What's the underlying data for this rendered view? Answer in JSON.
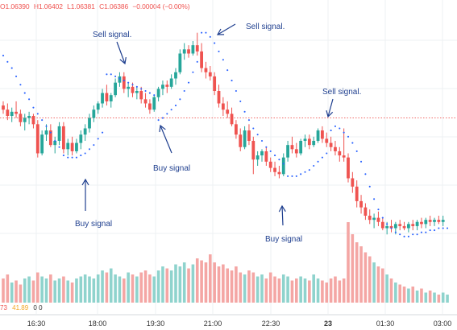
{
  "header": {
    "open": "O1.06390",
    "high": "H1.06402",
    "low": "L1.06381",
    "close": "C1.06386",
    "change": "−0.00004 (−0.00%)"
  },
  "indicator": {
    "v1": "73",
    "v2": "41.89",
    "v3": "0",
    "v4": "0"
  },
  "chart_data": {
    "type": "candlestick",
    "title": "",
    "x_tick_labels": [
      "16:30",
      "18:00",
      "19:30",
      "21:00",
      "22:30",
      "23",
      "01:30",
      "03:00"
    ],
    "candles": [
      [
        1.0717,
        1.0719,
        1.0713,
        1.0715
      ],
      [
        1.0715,
        1.0718,
        1.071,
        1.0712
      ],
      [
        1.0712,
        1.0716,
        1.0709,
        1.0714
      ],
      [
        1.0714,
        1.0719,
        1.0711,
        1.0713
      ],
      [
        1.0713,
        1.0715,
        1.0707,
        1.0709
      ],
      [
        1.0709,
        1.0713,
        1.0705,
        1.0711
      ],
      [
        1.0711,
        1.0714,
        1.0708,
        1.0712
      ],
      [
        1.0712,
        1.0713,
        1.0706,
        1.0708
      ],
      [
        1.0708,
        1.071,
        1.0692,
        1.0694
      ],
      [
        1.0694,
        1.0705,
        1.0693,
        1.0703
      ],
      [
        1.0703,
        1.0708,
        1.07,
        1.0705
      ],
      [
        1.0705,
        1.0708,
        1.0697,
        1.0698
      ],
      [
        1.0698,
        1.0702,
        1.0694,
        1.07
      ],
      [
        1.07,
        1.0709,
        1.0698,
        1.0707
      ],
      [
        1.0707,
        1.0709,
        1.0694,
        1.0696
      ],
      [
        1.0696,
        1.0701,
        1.0693,
        1.0699
      ],
      [
        1.0699,
        1.0702,
        1.0693,
        1.0695
      ],
      [
        1.0695,
        1.0701,
        1.0694,
        1.0699
      ],
      [
        1.0699,
        1.0705,
        1.0696,
        1.0703
      ],
      [
        1.0703,
        1.0708,
        1.07,
        1.0706
      ],
      [
        1.0706,
        1.0713,
        1.0704,
        1.0711
      ],
      [
        1.0711,
        1.0717,
        1.0709,
        1.0715
      ],
      [
        1.0715,
        1.0719,
        1.0713,
        1.0718
      ],
      [
        1.0718,
        1.0725,
        1.0716,
        1.0723
      ],
      [
        1.0723,
        1.0727,
        1.0717,
        1.0719
      ],
      [
        1.0719,
        1.0723,
        1.0716,
        1.0722
      ],
      [
        1.0722,
        1.073,
        1.0721,
        1.0728
      ],
      [
        1.0728,
        1.0733,
        1.0726,
        1.0731
      ],
      [
        1.0731,
        1.0733,
        1.0723,
        1.0725
      ],
      [
        1.0725,
        1.0728,
        1.0721,
        1.0726
      ],
      [
        1.0726,
        1.0728,
        1.0721,
        1.0723
      ],
      [
        1.0723,
        1.0726,
        1.072,
        1.0724
      ],
      [
        1.0724,
        1.0726,
        1.0718,
        1.072
      ],
      [
        1.072,
        1.0723,
        1.0716,
        1.0718
      ],
      [
        1.0718,
        1.072,
        1.0713,
        1.0715
      ],
      [
        1.0715,
        1.0722,
        1.0714,
        1.0721
      ],
      [
        1.0721,
        1.0726,
        1.0719,
        1.0725
      ],
      [
        1.0725,
        1.0729,
        1.0722,
        1.0727
      ],
      [
        1.0727,
        1.0729,
        1.0723,
        1.0726
      ],
      [
        1.0726,
        1.0732,
        1.0725,
        1.073
      ],
      [
        1.073,
        1.0735,
        1.0727,
        1.0733
      ],
      [
        1.0733,
        1.0744,
        1.0732,
        1.0742
      ],
      [
        1.0742,
        1.0747,
        1.0739,
        1.0744
      ],
      [
        1.0744,
        1.0746,
        1.074,
        1.0742
      ],
      [
        1.0742,
        1.0748,
        1.0741,
        1.0746
      ],
      [
        1.0746,
        1.0752,
        1.0741,
        1.0743
      ],
      [
        1.0743,
        1.0747,
        1.0733,
        1.0735
      ],
      [
        1.0735,
        1.0738,
        1.073,
        1.0733
      ],
      [
        1.0733,
        1.0736,
        1.0729,
        1.0731
      ],
      [
        1.0731,
        1.0733,
        1.0722,
        1.0724
      ],
      [
        1.0724,
        1.0727,
        1.0716,
        1.0718
      ],
      [
        1.0718,
        1.0721,
        1.0712,
        1.0715
      ],
      [
        1.0715,
        1.0719,
        1.0711,
        1.0713
      ],
      [
        1.0713,
        1.0716,
        1.0707,
        1.0708
      ],
      [
        1.0708,
        1.071,
        1.0701,
        1.0703
      ],
      [
        1.0703,
        1.0706,
        1.0695,
        1.0697
      ],
      [
        1.0697,
        1.0707,
        1.0696,
        1.0705
      ],
      [
        1.0705,
        1.0708,
        1.0698,
        1.07
      ],
      [
        1.07,
        1.0702,
        1.0684,
        1.0691
      ],
      [
        1.0691,
        1.0695,
        1.0688,
        1.0693
      ],
      [
        1.0693,
        1.0696,
        1.069,
        1.0695
      ],
      [
        1.0695,
        1.0697,
        1.0688,
        1.069
      ],
      [
        1.069,
        1.0692,
        1.0685,
        1.0687
      ],
      [
        1.0687,
        1.069,
        1.0683,
        1.0685
      ],
      [
        1.0685,
        1.0688,
        1.0682,
        1.0684
      ],
      [
        1.0684,
        1.0694,
        1.0683,
        1.0692
      ],
      [
        1.0692,
        1.07,
        1.069,
        1.0698
      ],
      [
        1.0698,
        1.0702,
        1.0694,
        1.0696
      ],
      [
        1.0696,
        1.0699,
        1.0692,
        1.0694
      ],
      [
        1.0694,
        1.0701,
        1.0693,
        1.07
      ],
      [
        1.07,
        1.0703,
        1.0697,
        1.0701
      ],
      [
        1.0701,
        1.0703,
        1.0696,
        1.0698
      ],
      [
        1.0698,
        1.0702,
        1.0697,
        1.07
      ],
      [
        1.07,
        1.0706,
        1.0699,
        1.0705
      ],
      [
        1.0705,
        1.0707,
        1.0699,
        1.0701
      ],
      [
        1.0701,
        1.0704,
        1.0697,
        1.0699
      ],
      [
        1.0699,
        1.0702,
        1.0695,
        1.0697
      ],
      [
        1.0697,
        1.07,
        1.0693,
        1.0695
      ],
      [
        1.0695,
        1.0697,
        1.069,
        1.0693
      ],
      [
        1.0693,
        1.0706,
        1.069,
        1.0692
      ],
      [
        1.0692,
        1.0694,
        1.068,
        1.0682
      ],
      [
        1.0682,
        1.0685,
        1.0675,
        1.0678
      ],
      [
        1.0678,
        1.0681,
        1.0668,
        1.0671
      ],
      [
        1.0671,
        1.0674,
        1.0665,
        1.0668
      ],
      [
        1.0668,
        1.067,
        1.0662,
        1.0664
      ],
      [
        1.0664,
        1.0667,
        1.066,
        1.0662
      ],
      [
        1.0662,
        1.0665,
        1.0658,
        1.0663
      ],
      [
        1.0663,
        1.0666,
        1.0659,
        1.0661
      ],
      [
        1.0661,
        1.0663,
        1.0657,
        1.0658
      ],
      [
        1.0658,
        1.0661,
        1.0655,
        1.0659
      ],
      [
        1.0659,
        1.0662,
        1.0656,
        1.0658
      ],
      [
        1.0658,
        1.0661,
        1.0655,
        1.066
      ],
      [
        1.066,
        1.0662,
        1.0657,
        1.0659
      ],
      [
        1.0659,
        1.0661,
        1.0657,
        1.0658
      ],
      [
        1.0658,
        1.0661,
        1.0656,
        1.066
      ],
      [
        1.066,
        1.0662,
        1.0657,
        1.0659
      ],
      [
        1.0659,
        1.0662,
        1.0657,
        1.0661
      ],
      [
        1.0661,
        1.0663,
        1.0658,
        1.066
      ],
      [
        1.066,
        1.0663,
        1.0658,
        1.0662
      ],
      [
        1.0662,
        1.0664,
        1.0659,
        1.0661
      ],
      [
        1.0661,
        1.0663,
        1.0659,
        1.0662
      ],
      [
        1.0662,
        1.0664,
        1.066,
        1.0661
      ],
      [
        1.0661,
        1.0664,
        1.0659,
        1.0662
      ]
    ],
    "volume": [
      12,
      14,
      10,
      11,
      9,
      12,
      13,
      11,
      15,
      13,
      12,
      14,
      11,
      12,
      13,
      11,
      10,
      12,
      13,
      14,
      13,
      12,
      14,
      16,
      15,
      17,
      14,
      13,
      12,
      15,
      14,
      13,
      15,
      16,
      14,
      13,
      16,
      18,
      17,
      16,
      19,
      18,
      20,
      17,
      19,
      22,
      21,
      20,
      24,
      20,
      18,
      19,
      17,
      16,
      18,
      15,
      14,
      16,
      15,
      13,
      14,
      12,
      15,
      13,
      12,
      14,
      13,
      11,
      12,
      13,
      12,
      11,
      14,
      12,
      11,
      10,
      12,
      13,
      11,
      12,
      40,
      34,
      30,
      28,
      25,
      23,
      20,
      18,
      17,
      14,
      12,
      10,
      9,
      8,
      7,
      8,
      6,
      7,
      5,
      6,
      5,
      4,
      5,
      4
    ],
    "parabolic_sar": [
      1.0741,
      1.0738,
      1.0735,
      1.0731,
      1.0727,
      1.0723,
      1.072,
      1.0716,
      1.0713,
      1.071,
      1.0707,
      1.0704,
      1.07,
      1.0697,
      1.0693,
      1.0692,
      1.0692,
      1.0692,
      1.0693,
      1.0694,
      1.0696,
      1.0698,
      1.0701,
      1.0704,
      1.0732,
      1.0732,
      1.0731,
      1.073,
      1.0729,
      1.0728,
      1.0727,
      1.0726,
      1.0725,
      1.0724,
      1.0723,
      1.0722,
      1.071,
      1.0711,
      1.0713,
      1.0715,
      1.0717,
      1.072,
      1.0724,
      1.0728,
      1.0733,
      1.0738,
      1.0752,
      1.0752,
      1.075,
      1.0747,
      1.0743,
      1.0739,
      1.0734,
      1.0729,
      1.0724,
      1.0719,
      1.0714,
      1.071,
      1.0706,
      1.0703,
      1.07,
      1.0697,
      1.0695,
      1.0693,
      1.0691,
      1.0689,
      1.0683,
      1.0683,
      1.0683,
      1.0684,
      1.0685,
      1.0686,
      1.0688,
      1.069,
      1.0692,
      1.0694,
      1.0705,
      1.0707,
      1.0706,
      1.0704,
      1.0702,
      1.0699,
      1.0695,
      1.069,
      1.0684,
      1.0678,
      1.0672,
      1.0667,
      1.0663,
      1.066,
      1.0658,
      1.0656,
      1.0655,
      1.0654,
      1.0654,
      1.0655,
      1.0655,
      1.0656,
      1.0656,
      1.0657,
      1.0657,
      1.0658,
      1.0658,
      1.0658
    ],
    "annotations": [
      {
        "text": "Sell signal.",
        "target_candle": 24
      },
      {
        "text": "Buy signal",
        "target_candle": 36
      },
      {
        "text": "Sell signal.",
        "target_candle": 46
      },
      {
        "text": "Buy signal",
        "target_candle": 66
      },
      {
        "text": "Sell signal.",
        "target_candle": 76
      },
      {
        "text": "Buy signal",
        "target_candle": 14
      }
    ],
    "last_price_line": 1.0711,
    "colors": {
      "up": "#26a69a",
      "down": "#ef5350",
      "sar": "#2962ff",
      "annotation": "#1f3f8f",
      "volume_up": "#8fd3cd",
      "volume_down": "#f4a6a4"
    }
  }
}
